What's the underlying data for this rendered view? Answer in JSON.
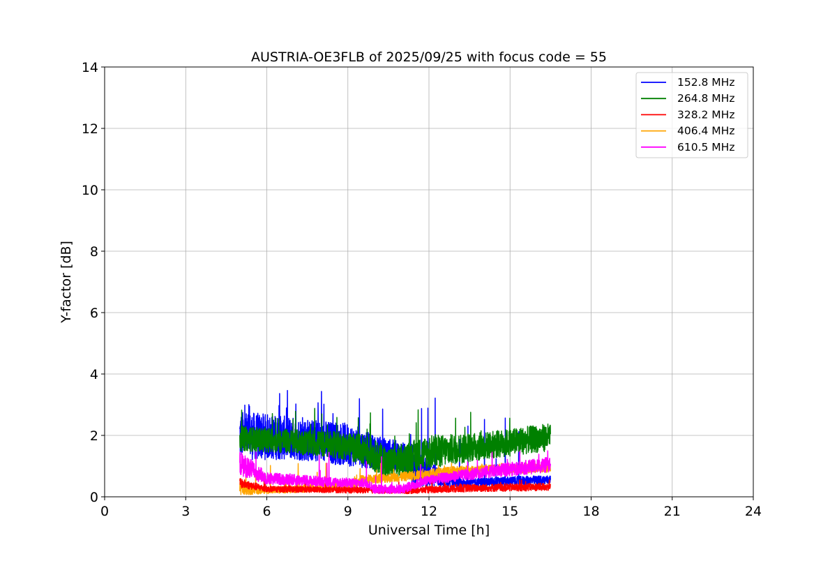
{
  "chart_data": {
    "type": "line",
    "title": "AUSTRIA-OE3FLB of 2025/09/25 with focus code = 55",
    "xlabel": "Universal Time [h]",
    "ylabel": "Y-factor [dB]",
    "xlim": [
      0,
      24
    ],
    "ylim": [
      0,
      14
    ],
    "xticks": [
      0,
      3,
      6,
      9,
      12,
      15,
      18,
      21,
      24
    ],
    "yticks": [
      0,
      2,
      4,
      6,
      8,
      10,
      12,
      14
    ],
    "grid": true,
    "legend_position": "top-right",
    "note": "Noisy traces; series given as approximate envelope [time_h, low_dB, high_dB]",
    "series": [
      {
        "name": "152.8 MHz",
        "color": "#0000ff",
        "spike_max": 3.5,
        "envelope": [
          [
            5,
            1.2,
            2.8
          ],
          [
            7,
            1.2,
            2.6
          ],
          [
            9,
            1.0,
            2.4
          ],
          [
            10,
            0.9,
            2.0
          ],
          [
            11,
            0.8,
            1.8
          ],
          [
            11.5,
            0.3,
            1.5
          ],
          [
            13,
            0.3,
            0.6
          ],
          [
            16.5,
            0.4,
            0.7
          ]
        ]
      },
      {
        "name": "264.8 MHz",
        "color": "#008000",
        "spike_max": 2.9,
        "envelope": [
          [
            5,
            1.5,
            2.3
          ],
          [
            7,
            1.4,
            2.2
          ],
          [
            9,
            1.2,
            2.1
          ],
          [
            9.7,
            1.0,
            2.0
          ],
          [
            10.5,
            0.5,
            1.6
          ],
          [
            12,
            0.9,
            2.0
          ],
          [
            14,
            1.2,
            2.1
          ],
          [
            16.5,
            1.5,
            2.4
          ]
        ]
      },
      {
        "name": "328.2 MHz",
        "color": "#ff0000",
        "spike_max": 0.6,
        "envelope": [
          [
            5,
            0.3,
            0.6
          ],
          [
            6,
            0.15,
            0.35
          ],
          [
            11.3,
            0.1,
            0.3
          ],
          [
            13,
            0.15,
            0.4
          ],
          [
            16.5,
            0.2,
            0.45
          ]
        ]
      },
      {
        "name": "406.4 MHz",
        "color": "#ffa500",
        "spike_max": 1.1,
        "envelope": [
          [
            5,
            0.05,
            0.5
          ],
          [
            6,
            0.1,
            0.3
          ],
          [
            9,
            0.2,
            0.5
          ],
          [
            9.5,
            0.4,
            0.7
          ],
          [
            11,
            0.5,
            0.8
          ],
          [
            13,
            0.7,
            1.0
          ],
          [
            16.5,
            0.8,
            1.1
          ]
        ]
      },
      {
        "name": "610.5 MHz",
        "color": "#ff00ff",
        "spike_max": 1.5,
        "envelope": [
          [
            5,
            0.7,
            1.5
          ],
          [
            6,
            0.4,
            0.8
          ],
          [
            9,
            0.3,
            0.6
          ],
          [
            9.7,
            0.3,
            0.6
          ],
          [
            10,
            0.1,
            0.4
          ],
          [
            11,
            0.1,
            0.4
          ],
          [
            12,
            0.4,
            0.7
          ],
          [
            14,
            0.6,
            1.0
          ],
          [
            16.5,
            0.8,
            1.3
          ]
        ]
      }
    ]
  }
}
